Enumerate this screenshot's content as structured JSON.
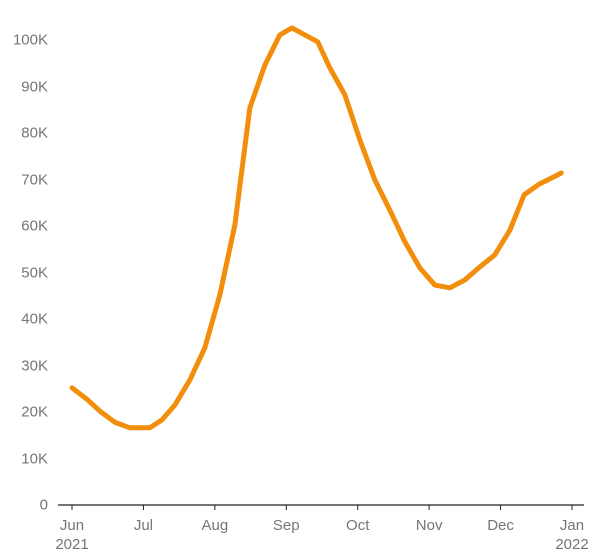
{
  "chart_data": {
    "type": "line",
    "x": [
      0,
      0.22,
      0.39,
      0.6,
      0.81,
      1.09,
      1.26,
      1.44,
      1.65,
      1.86,
      2.07,
      2.28,
      2.49,
      2.7,
      2.91,
      3.08,
      3.26,
      3.44,
      3.61,
      3.82,
      4.03,
      4.24,
      4.45,
      4.66,
      4.87,
      5.08,
      5.29,
      5.5,
      5.71,
      5.92,
      6.13,
      6.33,
      6.54,
      6.71,
      6.85
    ],
    "series": [
      {
        "color": "#f28e0c",
        "values": [
          25.2,
          22.6,
          20.2,
          17.8,
          16.6,
          16.6,
          18.3,
          21.5,
          26.9,
          33.8,
          45.2,
          60.2,
          85.4,
          94.6,
          101.1,
          102.6,
          101.1,
          99.6,
          94,
          88.2,
          78.5,
          69.9,
          63.4,
          56.6,
          51,
          47.3,
          46.7,
          48.4,
          51.2,
          53.8,
          59.1,
          66.7,
          69,
          70.3,
          71.4
        ]
      }
    ],
    "xlim": [
      0,
      7
    ],
    "xticks": [
      {
        "value": 0,
        "label": "Jun 2021"
      },
      {
        "value": 1,
        "label": "Jul"
      },
      {
        "value": 2,
        "label": "Aug"
      },
      {
        "value": 3,
        "label": "Sep"
      },
      {
        "value": 4,
        "label": "Oct"
      },
      {
        "value": 5,
        "label": "Nov"
      },
      {
        "value": 6,
        "label": "Dec"
      },
      {
        "value": 7,
        "label": "Jan 2022"
      }
    ],
    "ylim": [
      0,
      100
    ],
    "yticks": [
      0,
      {
        "value": 10,
        "label": "10K"
      },
      {
        "value": 20,
        "label": "20K"
      },
      {
        "value": 30,
        "label": "30K"
      },
      {
        "value": 40,
        "label": "40K"
      },
      {
        "value": 50,
        "label": "50K"
      },
      {
        "value": 60,
        "label": "60K"
      },
      {
        "value": 70,
        "label": "70K"
      },
      {
        "value": 80,
        "label": "80K"
      },
      {
        "value": 90,
        "label": "90K"
      },
      {
        "value": 100,
        "label": "100K"
      }
    ],
    "grid": false
  }
}
